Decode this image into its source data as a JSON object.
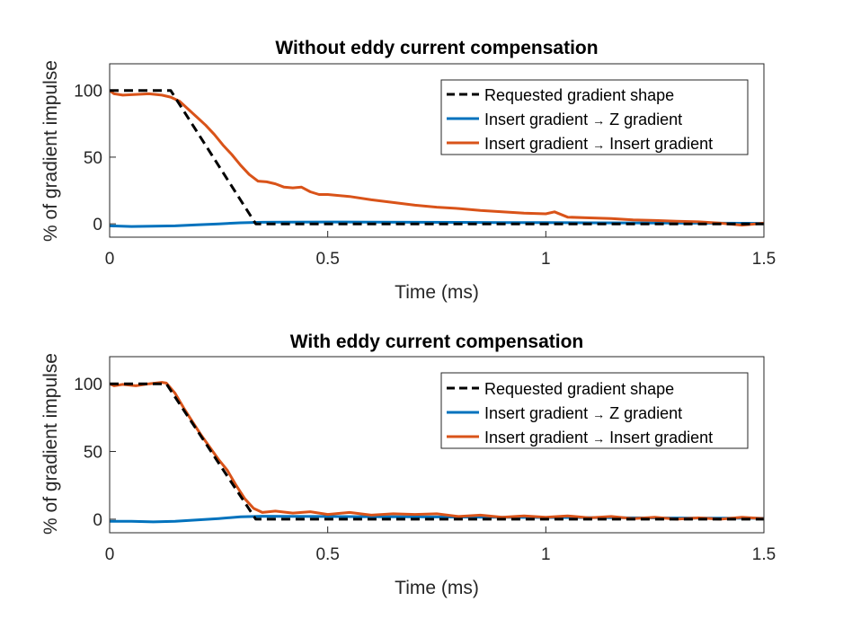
{
  "colors": {
    "requested": "#000000",
    "z_gradient": "#0072BD",
    "insert_gradient": "#D95319",
    "axis": "#262626",
    "legend_border": "#262626",
    "background": "#ffffff"
  },
  "chart_data": [
    {
      "type": "line",
      "title": "Without eddy current compensation",
      "xlabel": "Time (ms)",
      "ylabel": "% of gradient impulse",
      "xlim": [
        0,
        1.5
      ],
      "ylim": [
        -10,
        120
      ],
      "xticks": [
        0,
        0.5,
        1,
        1.5
      ],
      "xtick_labels": [
        "0",
        "0.5",
        "1",
        "1.5"
      ],
      "yticks": [
        0,
        50,
        100
      ],
      "ytick_labels": [
        "0",
        "50",
        "100"
      ],
      "legend_position": "top-right",
      "series": [
        {
          "name": "Requested gradient shape",
          "label_parts": [
            "Requested gradient shape"
          ],
          "style": "dashed",
          "color": "#000000",
          "x": [
            0,
            0.14,
            0.335,
            1.5
          ],
          "y": [
            100,
            100,
            0,
            0
          ]
        },
        {
          "name": "Insert gradient → Z gradient",
          "label_parts": [
            "Insert gradient",
            "→",
            "Z gradient"
          ],
          "style": "solid",
          "color": "#0072BD",
          "x": [
            0,
            0.05,
            0.1,
            0.15,
            0.2,
            0.25,
            0.3,
            0.35,
            0.4,
            0.5,
            0.6,
            0.7,
            0.8,
            0.9,
            1.0,
            1.1,
            1.2,
            1.3,
            1.4,
            1.5
          ],
          "y": [
            -1.5,
            -2,
            -1.8,
            -1.5,
            -0.8,
            0,
            0.8,
            1.2,
            1.3,
            1.4,
            1.3,
            1.2,
            1.1,
            1.0,
            0.9,
            0.8,
            0.7,
            0.6,
            0.5,
            0.4
          ]
        },
        {
          "name": "Insert gradient → Insert gradient",
          "label_parts": [
            "Insert gradient",
            "→",
            "Insert gradient"
          ],
          "style": "solid",
          "color": "#D95319",
          "x": [
            0,
            0.01,
            0.03,
            0.06,
            0.09,
            0.12,
            0.14,
            0.16,
            0.18,
            0.2,
            0.22,
            0.24,
            0.26,
            0.28,
            0.3,
            0.32,
            0.34,
            0.36,
            0.38,
            0.4,
            0.42,
            0.44,
            0.46,
            0.48,
            0.5,
            0.55,
            0.6,
            0.65,
            0.7,
            0.75,
            0.8,
            0.85,
            0.9,
            0.95,
            1.0,
            1.02,
            1.05,
            1.1,
            1.15,
            1.2,
            1.25,
            1.3,
            1.35,
            1.4,
            1.45,
            1.5
          ],
          "y": [
            100,
            97.5,
            96.5,
            97,
            97.5,
            96.5,
            95,
            92,
            86,
            80,
            74,
            67,
            59,
            52,
            44,
            37,
            32,
            31.5,
            30,
            27.5,
            27,
            27.5,
            24,
            22,
            22,
            20.5,
            18,
            16,
            14,
            12.5,
            11.5,
            10,
            9,
            8,
            7.5,
            9,
            5,
            4.5,
            4,
            3,
            2.5,
            2,
            1.5,
            0.5,
            -1,
            0.5
          ]
        }
      ]
    },
    {
      "type": "line",
      "title": "With eddy current compensation",
      "xlabel": "Time (ms)",
      "ylabel": "% of gradient impulse",
      "xlim": [
        0,
        1.5
      ],
      "ylim": [
        -10,
        120
      ],
      "xticks": [
        0,
        0.5,
        1,
        1.5
      ],
      "xtick_labels": [
        "0",
        "0.5",
        "1",
        "1.5"
      ],
      "yticks": [
        0,
        50,
        100
      ],
      "ytick_labels": [
        "0",
        "50",
        "100"
      ],
      "legend_position": "top-right",
      "series": [
        {
          "name": "Requested gradient shape",
          "label_parts": [
            "Requested gradient shape"
          ],
          "style": "dashed",
          "color": "#000000",
          "x": [
            0,
            0.13,
            0.335,
            1.5
          ],
          "y": [
            100,
            100,
            0,
            0
          ]
        },
        {
          "name": "Insert gradient → Z gradient",
          "label_parts": [
            "Insert gradient",
            "→",
            "Z gradient"
          ],
          "style": "solid",
          "color": "#0072BD",
          "x": [
            0,
            0.05,
            0.1,
            0.15,
            0.2,
            0.25,
            0.3,
            0.35,
            0.4,
            0.5,
            0.6,
            0.7,
            0.8,
            0.9,
            1.0,
            1.1,
            1.2,
            1.3,
            1.4,
            1.5
          ],
          "y": [
            -1.5,
            -1.5,
            -2,
            -1.5,
            -0.5,
            0.5,
            1.8,
            2.2,
            2.1,
            2.0,
            1.9,
            1.8,
            1.6,
            1.5,
            1.3,
            1.2,
            1.0,
            0.9,
            0.8,
            0.7
          ]
        },
        {
          "name": "Insert gradient → Insert gradient",
          "label_parts": [
            "Insert gradient",
            "→",
            "Insert gradient"
          ],
          "style": "solid",
          "color": "#D95319",
          "x": [
            0,
            0.01,
            0.03,
            0.06,
            0.09,
            0.12,
            0.13,
            0.15,
            0.17,
            0.19,
            0.21,
            0.23,
            0.25,
            0.27,
            0.29,
            0.31,
            0.33,
            0.35,
            0.38,
            0.42,
            0.46,
            0.5,
            0.55,
            0.6,
            0.65,
            0.7,
            0.75,
            0.8,
            0.85,
            0.9,
            0.95,
            1.0,
            1.05,
            1.1,
            1.15,
            1.2,
            1.25,
            1.3,
            1.35,
            1.4,
            1.45,
            1.5
          ],
          "y": [
            100,
            98.5,
            99.5,
            98.5,
            100,
            101,
            100.5,
            93,
            82,
            72,
            62,
            53,
            44,
            36,
            25,
            15,
            8,
            5,
            6,
            4.5,
            5.5,
            3.5,
            5,
            3,
            4,
            3.5,
            4,
            2,
            3,
            1.5,
            2.5,
            1.5,
            2.5,
            1,
            2,
            0.5,
            1.5,
            0,
            1,
            0,
            1.5,
            0.5
          ]
        }
      ]
    }
  ]
}
